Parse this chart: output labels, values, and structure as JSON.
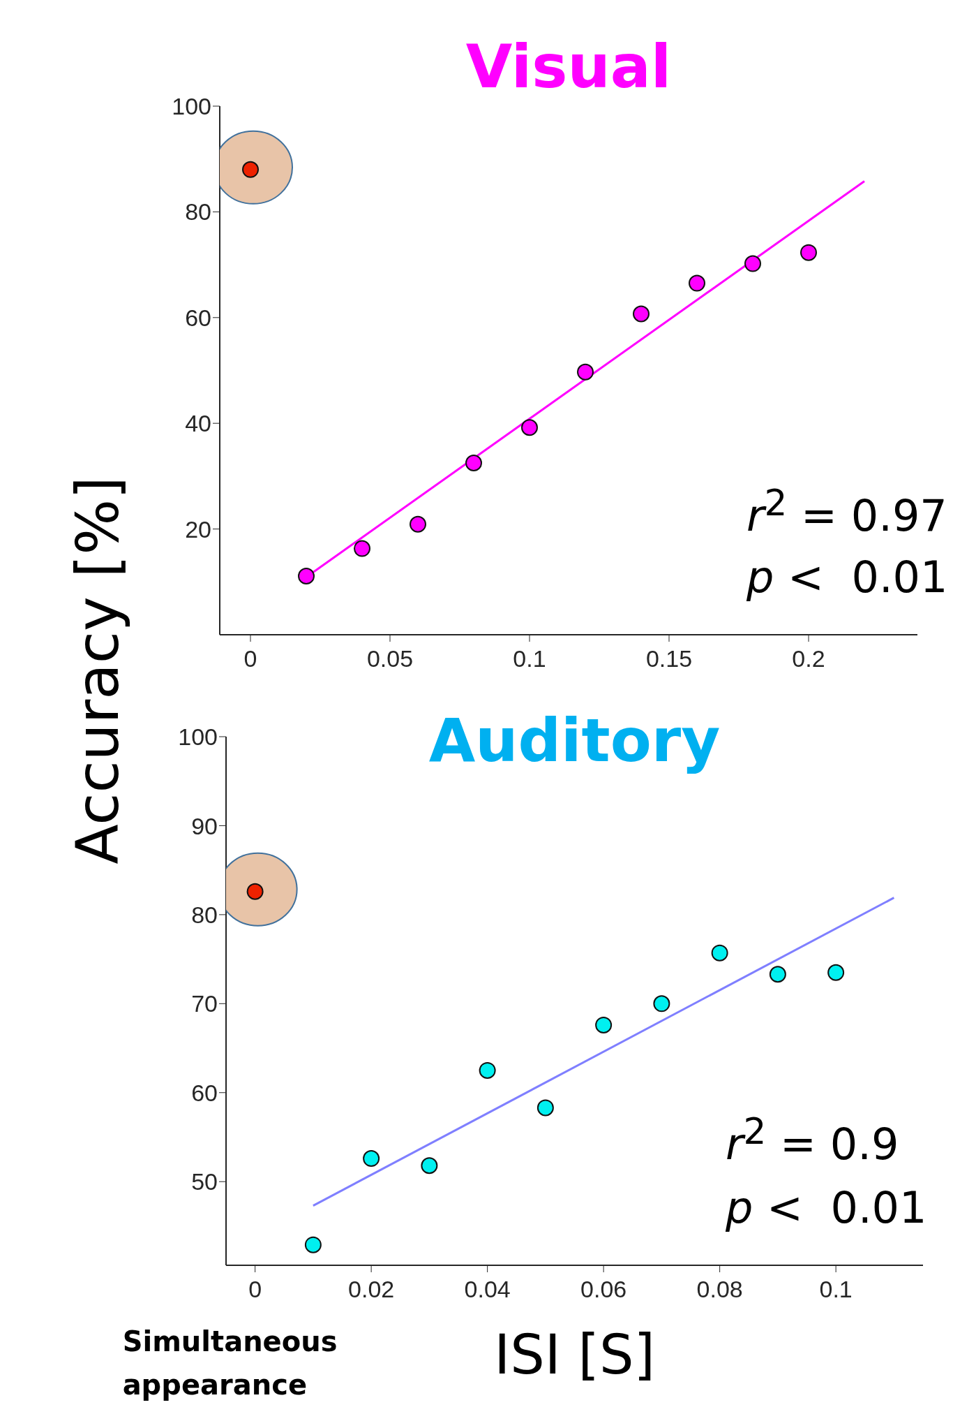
{
  "chart_data": [
    {
      "type": "scatter",
      "title": "Visual",
      "ylabel": "Accuracy [%]",
      "xlim": [
        -0.011,
        0.239
      ],
      "xticks": [
        0,
        0.05,
        0.1,
        0.15,
        0.2
      ],
      "ylim": [
        0,
        100
      ],
      "yticks": [
        20,
        40,
        60,
        80,
        100
      ],
      "series": [
        {
          "color": "#ff00ff",
          "marker": "circle",
          "x": [
            0.02,
            0.04,
            0.06,
            0.08,
            0.1,
            0.12,
            0.14,
            0.16,
            0.18,
            0.2
          ],
          "values": [
            11.1,
            16.3,
            20.9,
            32.5,
            39.2,
            49.7,
            60.7,
            66.5,
            70.2,
            72.3
          ]
        },
        {
          "color": "#ee2200",
          "marker": "circle",
          "x": [
            0
          ],
          "values": [
            88
          ]
        },
        {
          "type": "line",
          "color": "#ff00ff",
          "marker": "none",
          "x": [
            0.02,
            0.22
          ],
          "values": [
            10.9,
            85.8
          ]
        }
      ],
      "annotations": [
        "r$^{2}$ = 0.97",
        "p <  0.01"
      ]
    },
    {
      "type": "scatter",
      "title": "Auditory",
      "xlabel": "ISI [S]",
      "xlim": [
        -0.005,
        0.115
      ],
      "xticks": [
        0,
        0.02,
        0.04,
        0.06,
        0.08,
        0.1
      ],
      "ylim": [
        40.6,
        100
      ],
      "yticks": [
        50,
        60,
        70,
        80,
        90,
        100
      ],
      "series": [
        {
          "color": "#00f0f0",
          "marker": "circle",
          "x": [
            0.01,
            0.02,
            0.03,
            0.04,
            0.05,
            0.06,
            0.07,
            0.08,
            0.09,
            0.1
          ],
          "values": [
            42.9,
            52.6,
            51.8,
            62.5,
            58.3,
            67.6,
            70.0,
            75.7,
            73.3,
            73.5
          ]
        },
        {
          "color": "#ee2200",
          "marker": "circle",
          "x": [
            0
          ],
          "values": [
            82.6
          ]
        },
        {
          "type": "line",
          "color": "#7f7fff",
          "marker": "none",
          "x": [
            0.01,
            0.11
          ],
          "values": [
            47.3,
            81.9
          ]
        }
      ],
      "annotations": [
        "r$^{2}$ = 0.9",
        "p <  0.01",
        "Simultaneous appearance"
      ]
    }
  ]
}
